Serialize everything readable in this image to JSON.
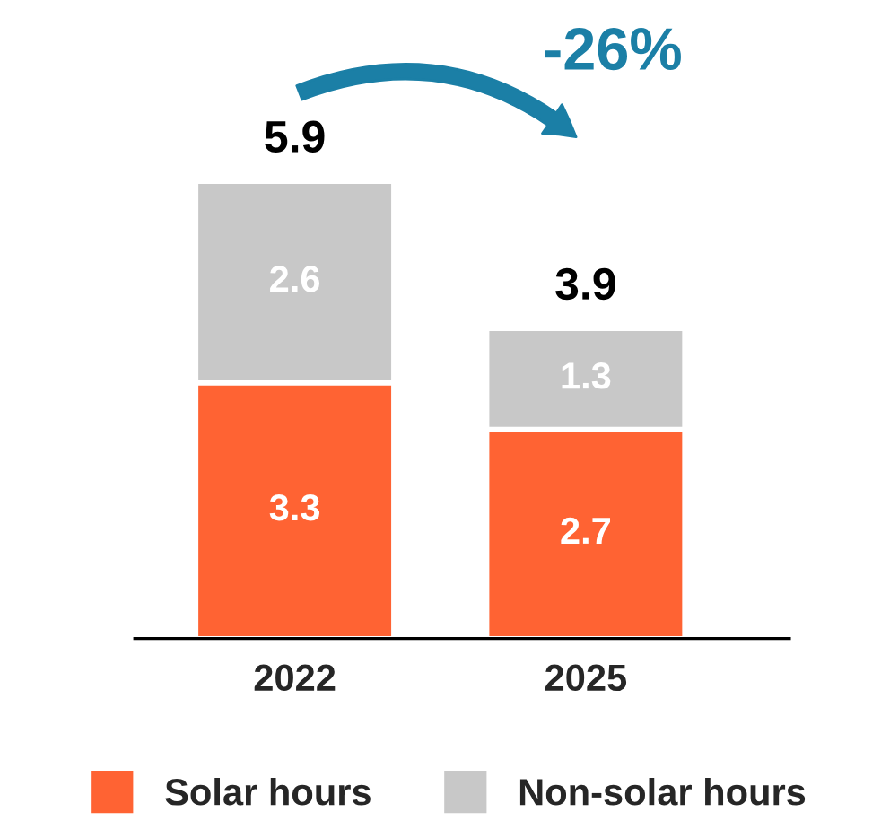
{
  "chart_data": {
    "type": "bar",
    "stacked": true,
    "categories": [
      "2022",
      "2025"
    ],
    "series": [
      {
        "name": "Solar hours",
        "color": "#ff6333",
        "values": [
          3.3,
          2.7
        ]
      },
      {
        "name": "Non-solar hours",
        "color": "#c8c8c8",
        "values": [
          2.6,
          1.3
        ]
      }
    ],
    "data_labels": true,
    "totals": [
      "5.9",
      "3.9"
    ],
    "annotations": [
      "-26%"
    ],
    "legend": "bottom",
    "grid": false
  }
}
